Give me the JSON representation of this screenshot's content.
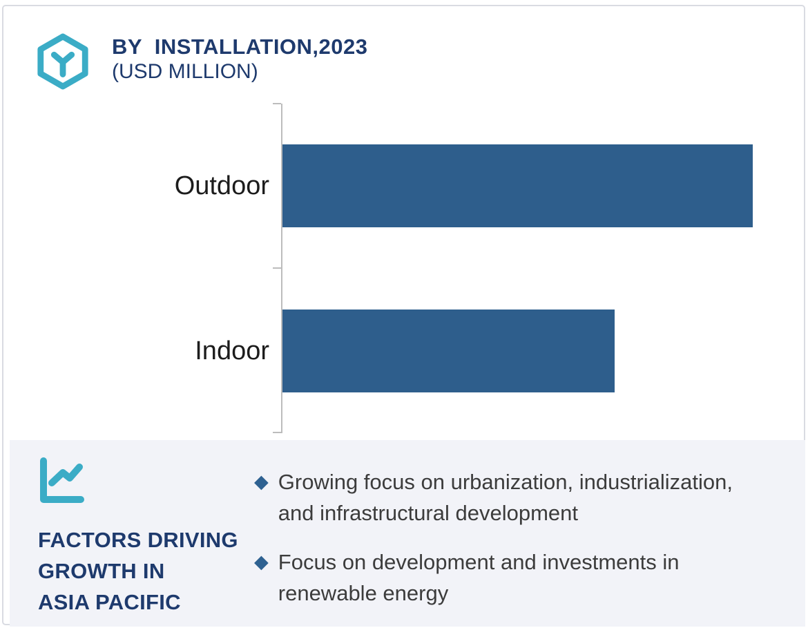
{
  "header": {
    "title": "BY  INSTALLATION,2023",
    "subtitle": "(USD MILLION)",
    "logo_icon": "hexagon-y-logo",
    "title_color": "#1e3a6d",
    "accent_teal": "#3bacc6"
  },
  "chart_data": {
    "type": "bar",
    "orientation": "horizontal",
    "title": "BY INSTALLATION,2023 (USD MILLION)",
    "categories": [
      "Outdoor",
      "Indoor"
    ],
    "series": [
      {
        "name": "2023",
        "values_relative_pct_of_max": [
          100,
          70.6
        ]
      }
    ],
    "value_labels_shown": false,
    "axis_tick_labels_shown": false,
    "grid": false,
    "legend": false,
    "bar_color": "#2e5e8c",
    "axis_color": "#bcbcbc",
    "label_color": "#1c1c1c"
  },
  "factors": {
    "icon": "line-chart-icon",
    "heading_lines": [
      "FACTORS DRIVING",
      "GROWTH IN",
      "ASIA PACIFIC"
    ],
    "bullet_marker": "◆",
    "items": [
      "Growing focus on urbanization, industrialization, and infrastructural development",
      "Focus on development and investments in renewable energy"
    ],
    "panel_bg": "#f2f3f8",
    "heading_color": "#1e3a6d",
    "text_color": "#3c3c3c",
    "bullet_color": "#2e6191"
  }
}
